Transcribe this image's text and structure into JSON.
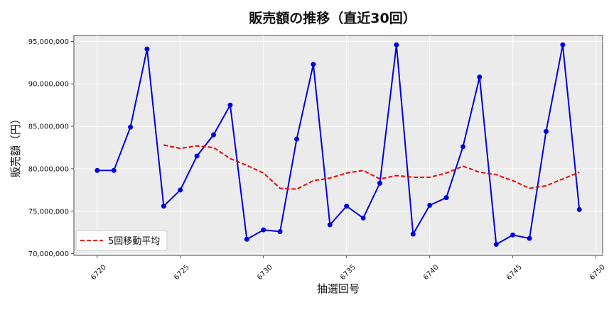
{
  "chart_data": {
    "type": "line",
    "title": "販売額の推移（直近30回）",
    "xlabel": "抽選回号",
    "ylabel": "販売額（円）",
    "xlim": [
      6718.6,
      6750.4
    ],
    "ylim": [
      69800000,
      95700000
    ],
    "grid": true,
    "legend_position": "lower-left",
    "colors": {
      "series_main": "#0000dd",
      "moving_average": "#ee0000",
      "plot_background": "#ebebeb",
      "grid": "#ffffff"
    },
    "x_ticks": [
      6720,
      6725,
      6730,
      6735,
      6740,
      6745,
      6750
    ],
    "x_tick_labels": [
      "6720",
      "6725",
      "6730",
      "6735",
      "6740",
      "6745",
      "6750"
    ],
    "y_ticks": [
      70000000,
      75000000,
      80000000,
      85000000,
      90000000,
      95000000
    ],
    "y_tick_labels": [
      "70,000,000",
      "75,000,000",
      "80,000,000",
      "85,000,000",
      "90,000,000",
      "95,000,000"
    ],
    "x": [
      6720,
      6721,
      6722,
      6723,
      6724,
      6725,
      6726,
      6727,
      6728,
      6729,
      6730,
      6731,
      6732,
      6733,
      6734,
      6735,
      6736,
      6737,
      6738,
      6739,
      6740,
      6741,
      6742,
      6743,
      6744,
      6745,
      6746,
      6747,
      6748,
      6749
    ],
    "series": [
      {
        "values": [
          79800000,
          79800000,
          84900000,
          94100000,
          75600000,
          77500000,
          81500000,
          84000000,
          87500000,
          71700000,
          72800000,
          72600000,
          83500000,
          92300000,
          73400000,
          75600000,
          74200000,
          78300000,
          94600000,
          72300000,
          75700000,
          76600000,
          82600000,
          90800000,
          71100000,
          72200000,
          71800000,
          84400000,
          94600000,
          75200000
        ]
      },
      {
        "name": "5回移動平均",
        "x": [
          6724,
          6725,
          6726,
          6727,
          6728,
          6729,
          6730,
          6731,
          6732,
          6733,
          6734,
          6735,
          6736,
          6737,
          6738,
          6739,
          6740,
          6741,
          6742,
          6743,
          6744,
          6745,
          6746,
          6747,
          6748,
          6749
        ],
        "values": [
          82800000,
          82400000,
          82700000,
          82500000,
          81200000,
          80400000,
          79500000,
          77700000,
          77600000,
          78600000,
          78900000,
          79500000,
          79800000,
          78800000,
          79200000,
          79000000,
          79000000,
          79500000,
          80300000,
          79600000,
          79300000,
          78600000,
          77700000,
          78000000,
          78800000,
          79600000
        ]
      }
    ]
  }
}
